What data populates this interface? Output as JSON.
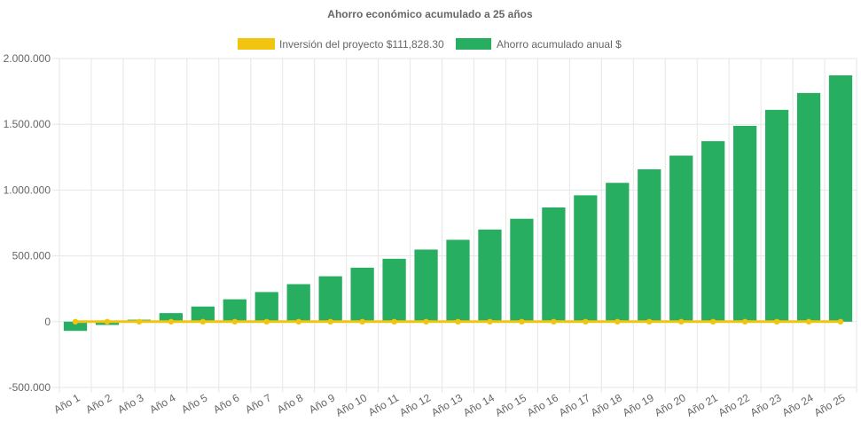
{
  "chart_data": {
    "type": "bar",
    "title": "Ahorro económico acumulado a 25 años",
    "xlabel": "",
    "ylabel": "",
    "ylim": [
      -500000,
      2000000
    ],
    "yticks": [
      2000000,
      1500000,
      1000000,
      500000,
      0,
      -500000
    ],
    "ytick_labels": [
      "2.000.000",
      "1.500.000",
      "1.000.000",
      "500.000",
      "0",
      "-500.000"
    ],
    "grid": true,
    "legend_position": "top",
    "categories": [
      "Año 1",
      "Año 2",
      "Año 3",
      "Año 4",
      "Año 5",
      "Año 6",
      "Año 7",
      "Año 8",
      "Año 9",
      "Año 10",
      "Año 11",
      "Año 12",
      "Año 13",
      "Año 14",
      "Año 15",
      "Año 16",
      "Año 17",
      "Año 18",
      "Año 19",
      "Año 20",
      "Año 21",
      "Año 22",
      "Año 23",
      "Año 24",
      "Año 25"
    ],
    "series": [
      {
        "name": "Inversión del proyecto $111,828.30",
        "type": "line",
        "color": "#f1c40f",
        "values": [
          0,
          0,
          0,
          0,
          0,
          0,
          0,
          0,
          0,
          0,
          0,
          0,
          0,
          0,
          0,
          0,
          0,
          0,
          0,
          0,
          0,
          0,
          0,
          0,
          0
        ]
      },
      {
        "name": "Ahorro acumulado anual $",
        "type": "bar",
        "color": "#27ae60",
        "values": [
          -70000,
          -25000,
          15000,
          65000,
          115000,
          170000,
          225000,
          285000,
          345000,
          410000,
          478000,
          548000,
          622000,
          700000,
          782000,
          868000,
          960000,
          1055000,
          1158000,
          1262000,
          1372000,
          1488000,
          1610000,
          1738000,
          1872000
        ]
      }
    ]
  }
}
